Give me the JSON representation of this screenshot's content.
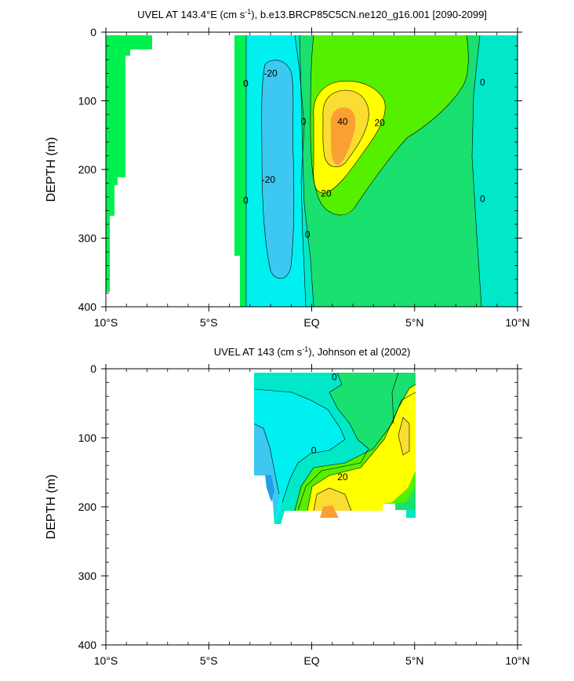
{
  "colors": {
    "c_neg30": "#1ea0e6",
    "c_neg20": "#3cc8f0",
    "c_neg10": "#00f0f0",
    "c_0": "#00e8c8",
    "c_10": "#19e06e",
    "c_20": "#55f000",
    "c_30": "#ffff00",
    "c_40": "#fadc32",
    "c_50": "#faa032",
    "green_side": "#00f050"
  },
  "chart_data": [
    {
      "type": "contour",
      "title_prefix": "UVEL AT 143.4°E (cm s",
      "title_sup": "-1",
      "title_suffix": "), b.e13.BRCP85C5CN.ne120_g16.001 [2090-2099]",
      "ylabel": "DEPTH (m)",
      "xlabel": "",
      "x_ticks": [
        "10°S",
        "5°S",
        "EQ",
        "5°N",
        "10°N"
      ],
      "x_range": [
        -10,
        10
      ],
      "y_ticks": [
        "0",
        "100",
        "200",
        "300",
        "400"
      ],
      "y_range": [
        0,
        400
      ],
      "contour_labels": [
        {
          "text": "-20",
          "lat": -2.0,
          "depth": 60
        },
        {
          "text": "-20",
          "lat": -2.1,
          "depth": 215
        },
        {
          "text": "0",
          "lat": -3.2,
          "depth": 75
        },
        {
          "text": "0",
          "lat": -3.2,
          "depth": 245
        },
        {
          "text": "0",
          "lat": -0.4,
          "depth": 130
        },
        {
          "text": "0",
          "lat": -0.2,
          "depth": 295
        },
        {
          "text": "40",
          "lat": 1.5,
          "depth": 130
        },
        {
          "text": "20",
          "lat": 3.3,
          "depth": 132
        },
        {
          "text": "20",
          "lat": 0.7,
          "depth": 235
        },
        {
          "text": "0",
          "lat": 8.3,
          "depth": 73
        },
        {
          "text": "0",
          "lat": 8.3,
          "depth": 243
        }
      ]
    },
    {
      "type": "contour",
      "title_prefix": "UVEL AT 143 (cm s",
      "title_sup": "-1",
      "title_suffix": "), Johnson et al (2002)",
      "ylabel": "DEPTH (m)",
      "xlabel": "",
      "x_ticks": [
        "10°S",
        "5°S",
        "EQ",
        "5°N",
        "10°N"
      ],
      "x_range": [
        -10,
        10
      ],
      "y_ticks": [
        "0",
        "100",
        "200",
        "300",
        "400"
      ],
      "y_range": [
        0,
        400
      ],
      "contour_labels": [
        {
          "text": "0",
          "lat": 1.1,
          "depth": 12
        },
        {
          "text": "0",
          "lat": 0.1,
          "depth": 118
        },
        {
          "text": "20",
          "lat": 1.5,
          "depth": 157
        }
      ]
    }
  ]
}
